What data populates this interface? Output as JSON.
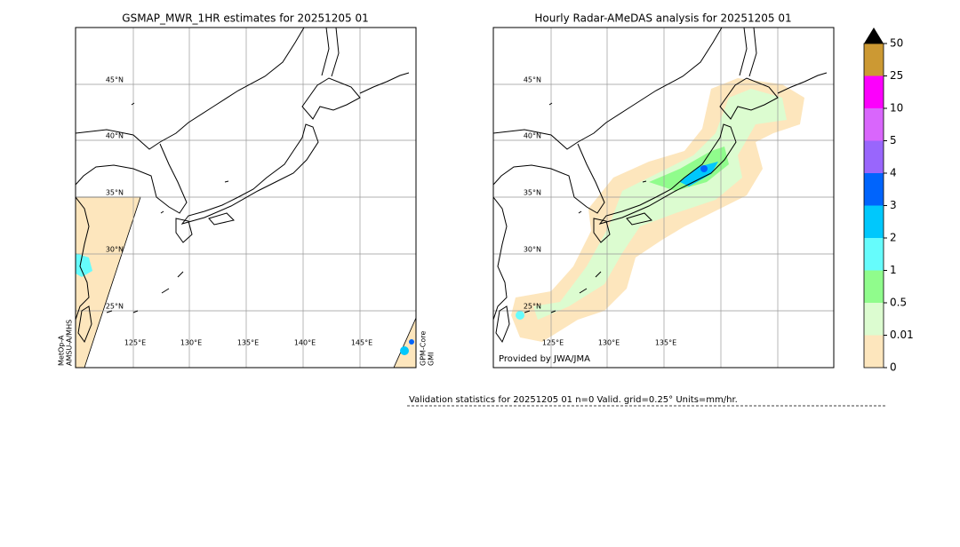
{
  "panels": [
    {
      "title": "GSMAP_MWR_1HR estimates for 20251205 01",
      "lat_labels": [
        "45°N",
        "40°N",
        "35°N",
        "30°N",
        "25°N"
      ],
      "lon_labels": [
        "125°E",
        "130°E",
        "135°E",
        "140°E",
        "145°E"
      ],
      "left_side_label": [
        "MetOp-A",
        "AMSU-A/MHS"
      ],
      "right_side_label": [
        "GPM-Core",
        "GMI"
      ]
    },
    {
      "title": "Hourly Radar-AMeDAS analysis for 20251205 01",
      "lat_labels": [
        "45°N",
        "40°N",
        "35°N",
        "30°N",
        "25°N"
      ],
      "lon_labels": [
        "125°E",
        "130°E",
        "135°E"
      ],
      "credit": "Provided by JWA/JMA"
    }
  ],
  "colorbar": {
    "labels": [
      0,
      0.01,
      0.5,
      1,
      2,
      3,
      4,
      5,
      10,
      25,
      50
    ],
    "colors": [
      "#fde6bd",
      "#dcfcd0",
      "#90fc8c",
      "#66fcfc",
      "#00c8fc",
      "#0064fc",
      "#9966fc",
      "#d966fc",
      "#fc00fc",
      "#cc9933"
    ],
    "over_color": "#000000"
  },
  "validation": "Validation statistics for 20251205 01  n=0 Valid. grid=0.25° Units=mm/hr."
}
